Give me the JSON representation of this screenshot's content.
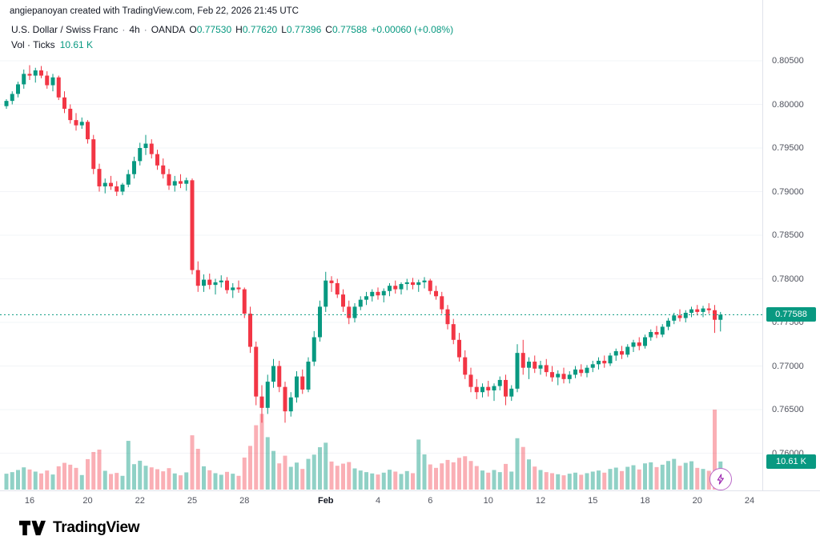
{
  "attribution": "angiepanoyan created with TradingView.com, Feb 22, 2026 21:45 UTC",
  "legend": {
    "symbol": "U.S. Dollar / Swiss Franc",
    "separator": "·",
    "interval": "4h",
    "exchange": "OANDA",
    "o_label": "O",
    "o_value": "0.77530",
    "h_label": "H",
    "h_value": "0.77620",
    "l_label": "L",
    "l_value": "0.77396",
    "c_label": "C",
    "c_value": "0.77588",
    "change": "+0.00060 (+0.08%)",
    "volume_label": "Vol · Ticks",
    "volume_value": "10.61 K"
  },
  "price_axis": {
    "ticks": [
      "0.80500",
      "0.80000",
      "0.79500",
      "0.79000",
      "0.78500",
      "0.78000",
      "0.77500",
      "0.77000",
      "0.76500",
      "0.76000"
    ],
    "last_price_badge": "0.77588",
    "volume_badge": "10.61 K"
  },
  "time_axis": {
    "labels": [
      {
        "text": "16",
        "index": 4
      },
      {
        "text": "20",
        "index": 14
      },
      {
        "text": "22",
        "index": 23
      },
      {
        "text": "25",
        "index": 32
      },
      {
        "text": "28",
        "index": 41
      },
      {
        "text": "Feb",
        "index": 55,
        "month": true
      },
      {
        "text": "4",
        "index": 64
      },
      {
        "text": "6",
        "index": 73
      },
      {
        "text": "10",
        "index": 83
      },
      {
        "text": "12",
        "index": 92
      },
      {
        "text": "15",
        "index": 101
      },
      {
        "text": "18",
        "index": 110
      },
      {
        "text": "20",
        "index": 119
      },
      {
        "text": "24",
        "index": 128
      }
    ]
  },
  "footer": {
    "brand": "TradingView"
  },
  "colors": {
    "up": "#089981",
    "down": "#f23645",
    "vol_up": "rgba(8,153,129,0.45)",
    "vol_down": "rgba(242,54,69,0.40)",
    "grid": "#f2f4f7",
    "last_price_line": "#089981",
    "badge": "#089981",
    "lightning": "#9c27b0"
  },
  "chart_data": {
    "type": "candlestick",
    "title": "U.S. Dollar / Swiss Franc, 4h, OANDA",
    "subtitle": "Vol · Ticks",
    "ohlc_format": [
      "open",
      "high",
      "low",
      "close",
      "volume_k"
    ],
    "y_axis": {
      "min": 0.758,
      "max": 0.8075,
      "tick_step": 0.005,
      "grid": true
    },
    "last_price": 0.77588,
    "last_volume_k": 10.61,
    "volume_unit": "K",
    "legend_position": "top-left",
    "candles": [
      [
        0.7998,
        0.8006,
        0.7995,
        0.8004,
        6.0
      ],
      [
        0.8004,
        0.8015,
        0.8,
        0.8012,
        6.6
      ],
      [
        0.8012,
        0.8026,
        0.8008,
        0.8023,
        7.4
      ],
      [
        0.8023,
        0.804,
        0.8018,
        0.8035,
        8.4
      ],
      [
        0.8035,
        0.8045,
        0.8028,
        0.8033,
        7.6
      ],
      [
        0.8033,
        0.8042,
        0.8025,
        0.8039,
        6.8
      ],
      [
        0.8039,
        0.8044,
        0.803,
        0.8033,
        6.1
      ],
      [
        0.8033,
        0.8038,
        0.8018,
        0.8022,
        7.2
      ],
      [
        0.8022,
        0.8035,
        0.8015,
        0.8031,
        5.7
      ],
      [
        0.8031,
        0.8033,
        0.8005,
        0.8008,
        8.8
      ],
      [
        0.8008,
        0.8015,
        0.799,
        0.7995,
        10.1
      ],
      [
        0.7995,
        0.8,
        0.7978,
        0.7982,
        9.4
      ],
      [
        0.7982,
        0.799,
        0.797,
        0.7976,
        8.2
      ],
      [
        0.7976,
        0.7985,
        0.7972,
        0.798,
        5.5
      ],
      [
        0.798,
        0.7982,
        0.7955,
        0.796,
        11.5
      ],
      [
        0.796,
        0.7965,
        0.792,
        0.7926,
        14.2
      ],
      [
        0.7926,
        0.7932,
        0.79,
        0.7906,
        15.1
      ],
      [
        0.7906,
        0.7915,
        0.7898,
        0.791,
        7.1
      ],
      [
        0.791,
        0.7918,
        0.7902,
        0.7906,
        5.9
      ],
      [
        0.7906,
        0.7912,
        0.7895,
        0.79,
        6.3
      ],
      [
        0.79,
        0.791,
        0.7896,
        0.7908,
        5.2
      ],
      [
        0.7908,
        0.7925,
        0.7905,
        0.792,
        18.4
      ],
      [
        0.792,
        0.794,
        0.7915,
        0.7935,
        9.6
      ],
      [
        0.7935,
        0.7956,
        0.793,
        0.795,
        10.9
      ],
      [
        0.795,
        0.7965,
        0.7942,
        0.7955,
        9.0
      ],
      [
        0.7955,
        0.796,
        0.7938,
        0.7943,
        8.4
      ],
      [
        0.7943,
        0.7948,
        0.7925,
        0.793,
        7.7
      ],
      [
        0.793,
        0.7938,
        0.7915,
        0.792,
        6.9
      ],
      [
        0.792,
        0.7926,
        0.7902,
        0.7907,
        8.1
      ],
      [
        0.7907,
        0.7918,
        0.79,
        0.7912,
        6.1
      ],
      [
        0.7912,
        0.792,
        0.7904,
        0.7909,
        5.4
      ],
      [
        0.7909,
        0.7916,
        0.7901,
        0.7913,
        6.5
      ],
      [
        0.7913,
        0.7915,
        0.7805,
        0.781,
        20.5
      ],
      [
        0.781,
        0.782,
        0.7785,
        0.7792,
        15.4
      ],
      [
        0.7792,
        0.7805,
        0.7785,
        0.7799,
        8.8
      ],
      [
        0.7799,
        0.7806,
        0.7788,
        0.7793,
        7.3
      ],
      [
        0.7793,
        0.78,
        0.7782,
        0.7796,
        6.2
      ],
      [
        0.7796,
        0.7804,
        0.779,
        0.7798,
        5.6
      ],
      [
        0.7798,
        0.7802,
        0.7783,
        0.7787,
        6.7
      ],
      [
        0.7787,
        0.7795,
        0.7778,
        0.779,
        6.0
      ],
      [
        0.779,
        0.7798,
        0.7784,
        0.7788,
        5.2
      ],
      [
        0.7788,
        0.779,
        0.7755,
        0.776,
        12.1
      ],
      [
        0.776,
        0.7768,
        0.7715,
        0.7722,
        16.5
      ],
      [
        0.7722,
        0.7728,
        0.7655,
        0.7665,
        24.3
      ],
      [
        0.7665,
        0.7678,
        0.7635,
        0.7652,
        28.6
      ],
      [
        0.7652,
        0.769,
        0.7645,
        0.7682,
        19.8
      ],
      [
        0.7682,
        0.7708,
        0.7675,
        0.77,
        14.6
      ],
      [
        0.77,
        0.7706,
        0.767,
        0.7676,
        9.9
      ],
      [
        0.7676,
        0.7682,
        0.7635,
        0.7648,
        12.8
      ],
      [
        0.7648,
        0.767,
        0.7642,
        0.7664,
        8.6
      ],
      [
        0.7664,
        0.7694,
        0.7658,
        0.7688,
        10.2
      ],
      [
        0.7688,
        0.7696,
        0.7668,
        0.7673,
        7.8
      ],
      [
        0.7673,
        0.771,
        0.767,
        0.7705,
        11.6
      ],
      [
        0.7705,
        0.774,
        0.77,
        0.7733,
        13.2
      ],
      [
        0.7733,
        0.7775,
        0.7728,
        0.7768,
        16.0
      ],
      [
        0.7768,
        0.7808,
        0.7762,
        0.7798,
        17.7
      ],
      [
        0.7798,
        0.7803,
        0.7785,
        0.7795,
        10.6
      ],
      [
        0.7795,
        0.78,
        0.7778,
        0.7782,
        9.0
      ],
      [
        0.7782,
        0.7788,
        0.7762,
        0.7768,
        9.8
      ],
      [
        0.7768,
        0.7775,
        0.7748,
        0.7755,
        10.4
      ],
      [
        0.7755,
        0.7772,
        0.775,
        0.7768,
        8.0
      ],
      [
        0.7768,
        0.778,
        0.7764,
        0.7776,
        7.2
      ],
      [
        0.7776,
        0.7785,
        0.777,
        0.778,
        6.6
      ],
      [
        0.778,
        0.7788,
        0.7774,
        0.7785,
        6.1
      ],
      [
        0.7785,
        0.779,
        0.7776,
        0.7781,
        5.7
      ],
      [
        0.7781,
        0.7789,
        0.7773,
        0.7786,
        6.4
      ],
      [
        0.7786,
        0.7795,
        0.778,
        0.7792,
        7.5
      ],
      [
        0.7792,
        0.7798,
        0.7783,
        0.7788,
        6.8
      ],
      [
        0.7788,
        0.7796,
        0.7782,
        0.7794,
        5.9
      ],
      [
        0.7794,
        0.78,
        0.7787,
        0.7796,
        7.0
      ],
      [
        0.7796,
        0.7801,
        0.7788,
        0.7793,
        6.2
      ],
      [
        0.7793,
        0.7799,
        0.7785,
        0.7796,
        18.9
      ],
      [
        0.7796,
        0.7802,
        0.7789,
        0.7798,
        13.3
      ],
      [
        0.7798,
        0.78,
        0.7782,
        0.7786,
        9.5
      ],
      [
        0.7786,
        0.7792,
        0.7776,
        0.778,
        8.2
      ],
      [
        0.778,
        0.7785,
        0.776,
        0.7765,
        9.9
      ],
      [
        0.7765,
        0.777,
        0.7742,
        0.7748,
        11.2
      ],
      [
        0.7748,
        0.7754,
        0.7725,
        0.773,
        10.3
      ],
      [
        0.773,
        0.7738,
        0.7705,
        0.771,
        12.0
      ],
      [
        0.771,
        0.7718,
        0.7685,
        0.769,
        12.6
      ],
      [
        0.769,
        0.7698,
        0.767,
        0.7676,
        10.8
      ],
      [
        0.7676,
        0.7685,
        0.7662,
        0.767,
        8.9
      ],
      [
        0.767,
        0.768,
        0.7664,
        0.7676,
        7.2
      ],
      [
        0.7676,
        0.7683,
        0.7665,
        0.7672,
        6.4
      ],
      [
        0.7672,
        0.768,
        0.766,
        0.7677,
        7.4
      ],
      [
        0.7677,
        0.7688,
        0.7672,
        0.7684,
        6.6
      ],
      [
        0.7684,
        0.769,
        0.7655,
        0.7665,
        9.7
      ],
      [
        0.7665,
        0.7678,
        0.766,
        0.7674,
        6.8
      ],
      [
        0.7674,
        0.7725,
        0.767,
        0.7715,
        19.4
      ],
      [
        0.7715,
        0.773,
        0.769,
        0.7698,
        16.1
      ],
      [
        0.7698,
        0.771,
        0.7685,
        0.7705,
        11.4
      ],
      [
        0.7705,
        0.7712,
        0.7692,
        0.7697,
        8.7
      ],
      [
        0.7697,
        0.7706,
        0.769,
        0.7701,
        7.4
      ],
      [
        0.7701,
        0.7708,
        0.7688,
        0.7693,
        6.6
      ],
      [
        0.7693,
        0.77,
        0.7682,
        0.7687,
        6.2
      ],
      [
        0.7687,
        0.7695,
        0.7678,
        0.7691,
        5.8
      ],
      [
        0.7691,
        0.7698,
        0.768,
        0.7685,
        5.4
      ],
      [
        0.7685,
        0.7694,
        0.768,
        0.769,
        6.0
      ],
      [
        0.769,
        0.77,
        0.7686,
        0.7696,
        6.4
      ],
      [
        0.7696,
        0.7702,
        0.7688,
        0.7692,
        5.6
      ],
      [
        0.7692,
        0.7701,
        0.7687,
        0.7698,
        6.2
      ],
      [
        0.7698,
        0.7706,
        0.7693,
        0.7702,
        6.8
      ],
      [
        0.7702,
        0.771,
        0.7696,
        0.7706,
        7.2
      ],
      [
        0.7706,
        0.7712,
        0.7698,
        0.7703,
        6.4
      ],
      [
        0.7703,
        0.7715,
        0.77,
        0.7712,
        7.8
      ],
      [
        0.7712,
        0.772,
        0.7706,
        0.7717,
        8.3
      ],
      [
        0.7717,
        0.7723,
        0.7708,
        0.7713,
        7.0
      ],
      [
        0.7713,
        0.7725,
        0.771,
        0.7722,
        8.6
      ],
      [
        0.7722,
        0.773,
        0.7716,
        0.7727,
        9.2
      ],
      [
        0.7727,
        0.7733,
        0.7718,
        0.7723,
        7.6
      ],
      [
        0.7723,
        0.7736,
        0.772,
        0.7733,
        9.9
      ],
      [
        0.7733,
        0.7742,
        0.7729,
        0.7739,
        10.3
      ],
      [
        0.7739,
        0.7746,
        0.7732,
        0.7736,
        8.5
      ],
      [
        0.7736,
        0.7748,
        0.7733,
        0.7745,
        9.4
      ],
      [
        0.7745,
        0.7755,
        0.7741,
        0.7752,
        10.8
      ],
      [
        0.7752,
        0.7761,
        0.7748,
        0.7758,
        11.6
      ],
      [
        0.7758,
        0.7765,
        0.7751,
        0.7755,
        9.0
      ],
      [
        0.7755,
        0.7764,
        0.775,
        0.7761,
        10.1
      ],
      [
        0.7761,
        0.7768,
        0.7756,
        0.7765,
        10.7
      ],
      [
        0.7765,
        0.777,
        0.7758,
        0.7762,
        8.2
      ],
      [
        0.7762,
        0.7769,
        0.7756,
        0.7766,
        7.8
      ],
      [
        0.7766,
        0.7772,
        0.776,
        0.7764,
        7.1
      ],
      [
        0.7764,
        0.777,
        0.7738,
        0.7753,
        30.2
      ],
      [
        0.7753,
        0.7762,
        0.77396,
        0.77588,
        10.61
      ]
    ]
  }
}
